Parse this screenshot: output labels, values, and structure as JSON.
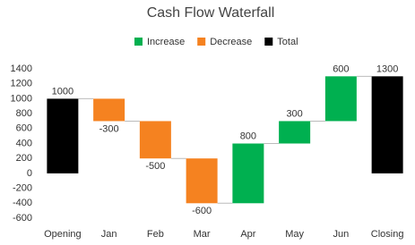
{
  "chart_data": {
    "type": "waterfall",
    "title": "Cash Flow Waterfall",
    "categories": [
      "Opening",
      "Jan",
      "Feb",
      "Mar",
      "Apr",
      "May",
      "Jun",
      "Closing"
    ],
    "values": [
      1000,
      -300,
      -500,
      -600,
      800,
      300,
      600,
      1300
    ],
    "legend": [
      {
        "name": "Increase",
        "color": "#00b050"
      },
      {
        "name": "Decrease",
        "color": "#f58220"
      },
      {
        "name": "Total",
        "color": "#000000"
      }
    ],
    "ylim": [
      -600,
      1400
    ],
    "yticks": [
      -600,
      -400,
      -200,
      0,
      200,
      400,
      600,
      800,
      1000,
      1200,
      1400
    ],
    "grid": false
  }
}
